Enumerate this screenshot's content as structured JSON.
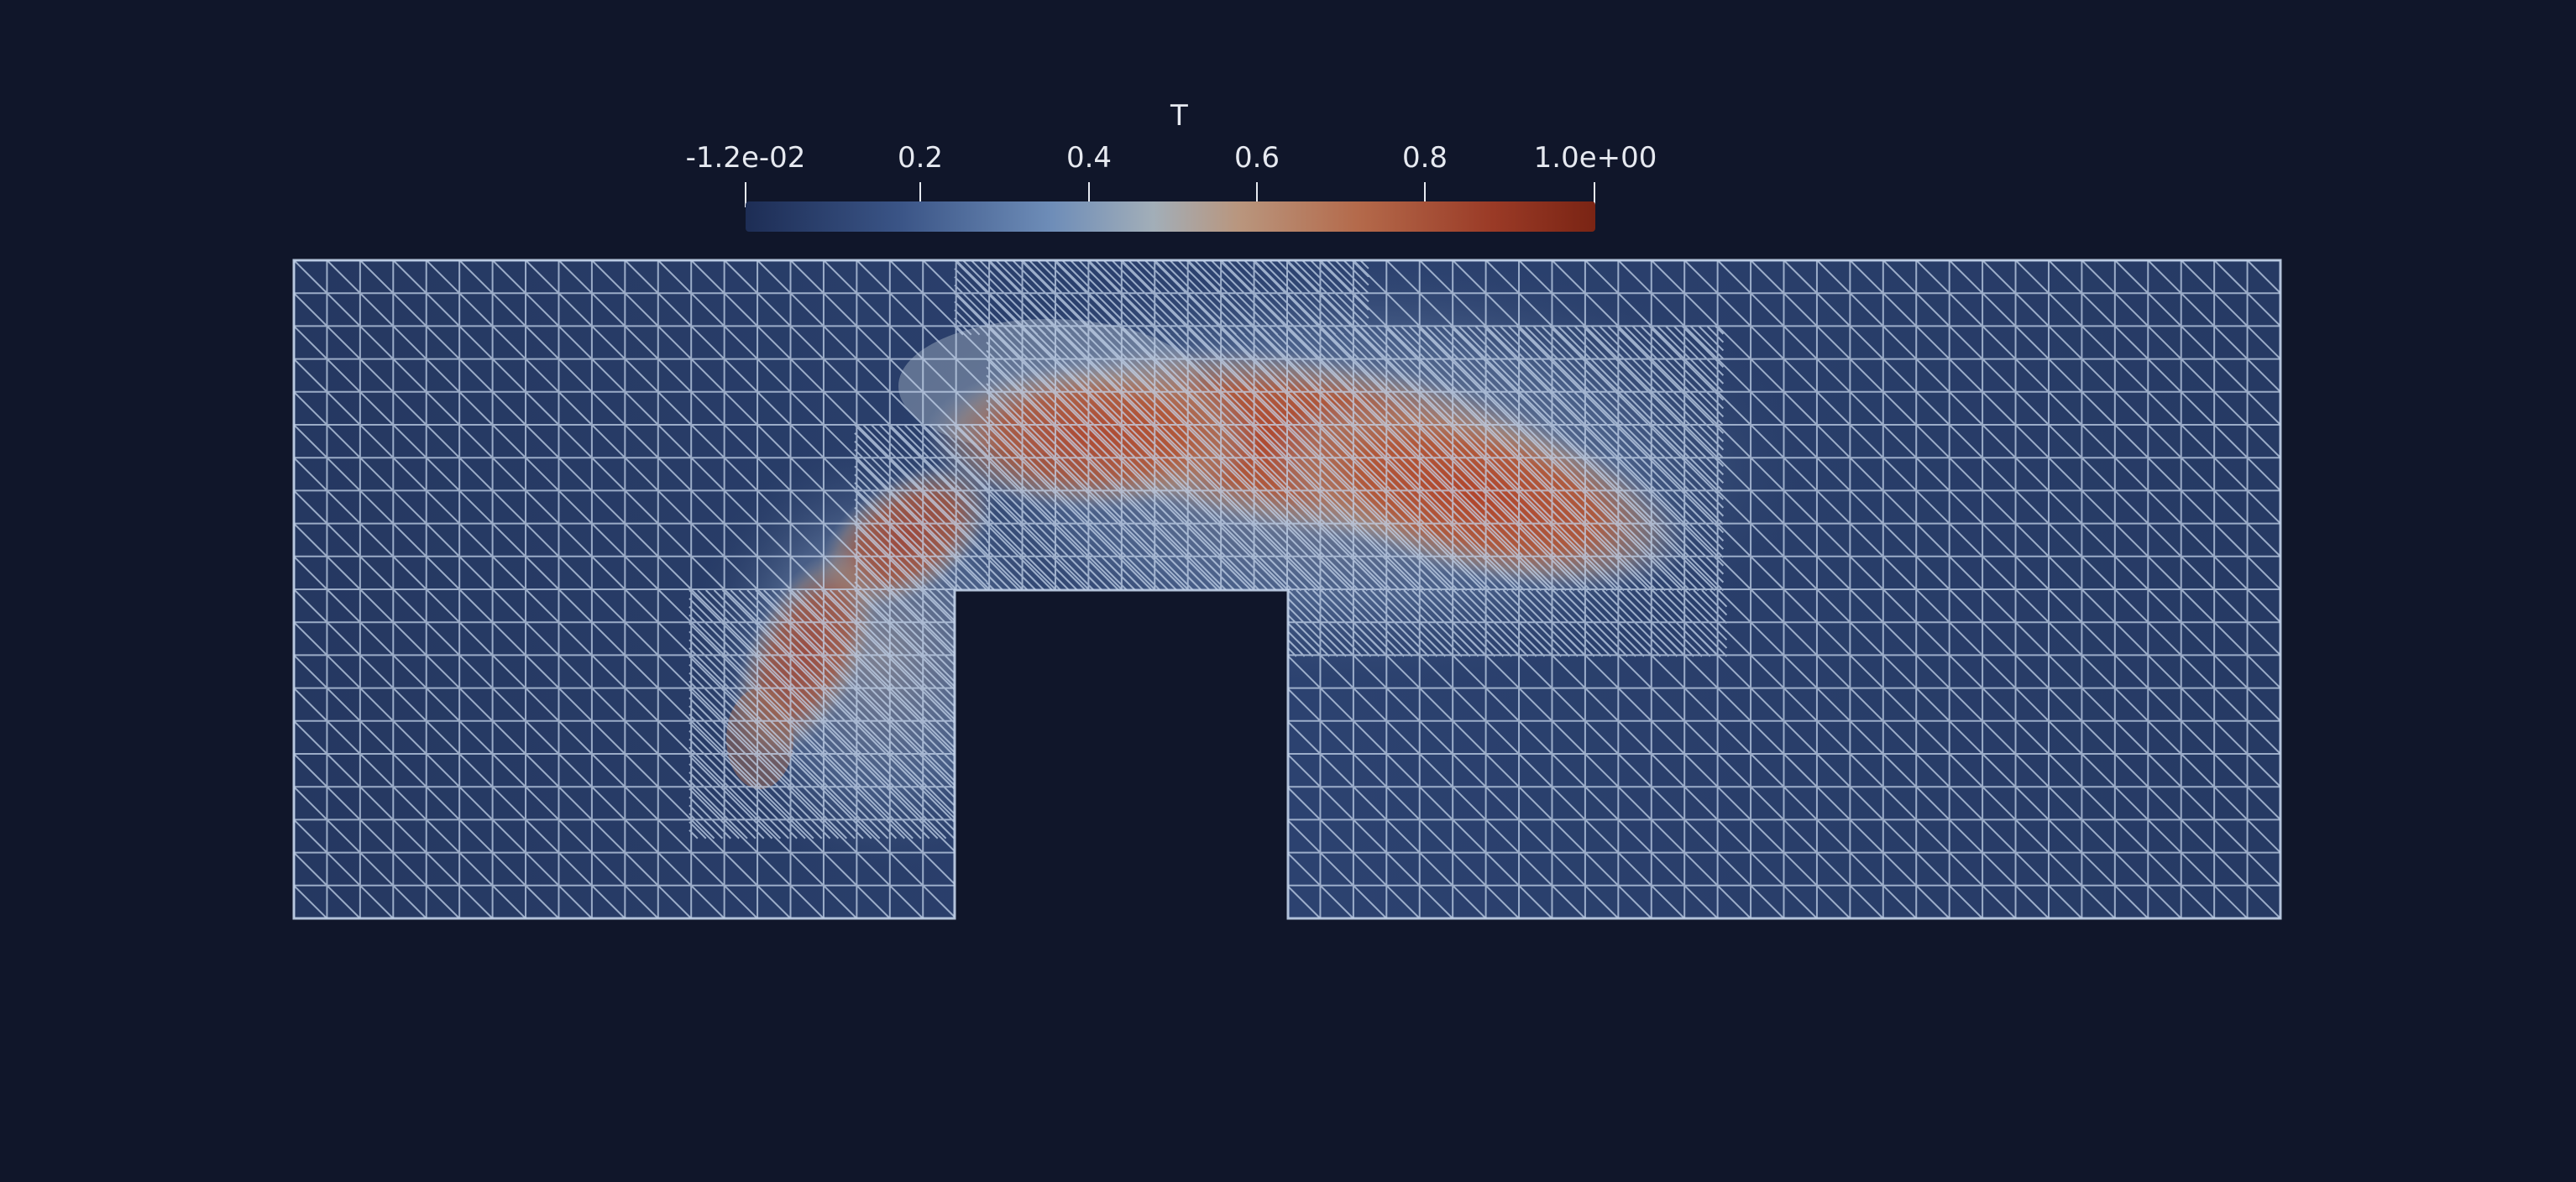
{
  "colorbar": {
    "title": "T",
    "tick_labels": [
      "-1.2e-02",
      "0.2",
      "0.4",
      "0.6",
      "0.8",
      "1.0e+00"
    ],
    "range": [
      -0.012,
      1.0
    ],
    "colormap": "blue-white-red"
  },
  "colors": {
    "background": "#10162a",
    "mesh_line": "#c3d3ea",
    "cold": "#1d2d55",
    "hot": "#9a3a26"
  }
}
